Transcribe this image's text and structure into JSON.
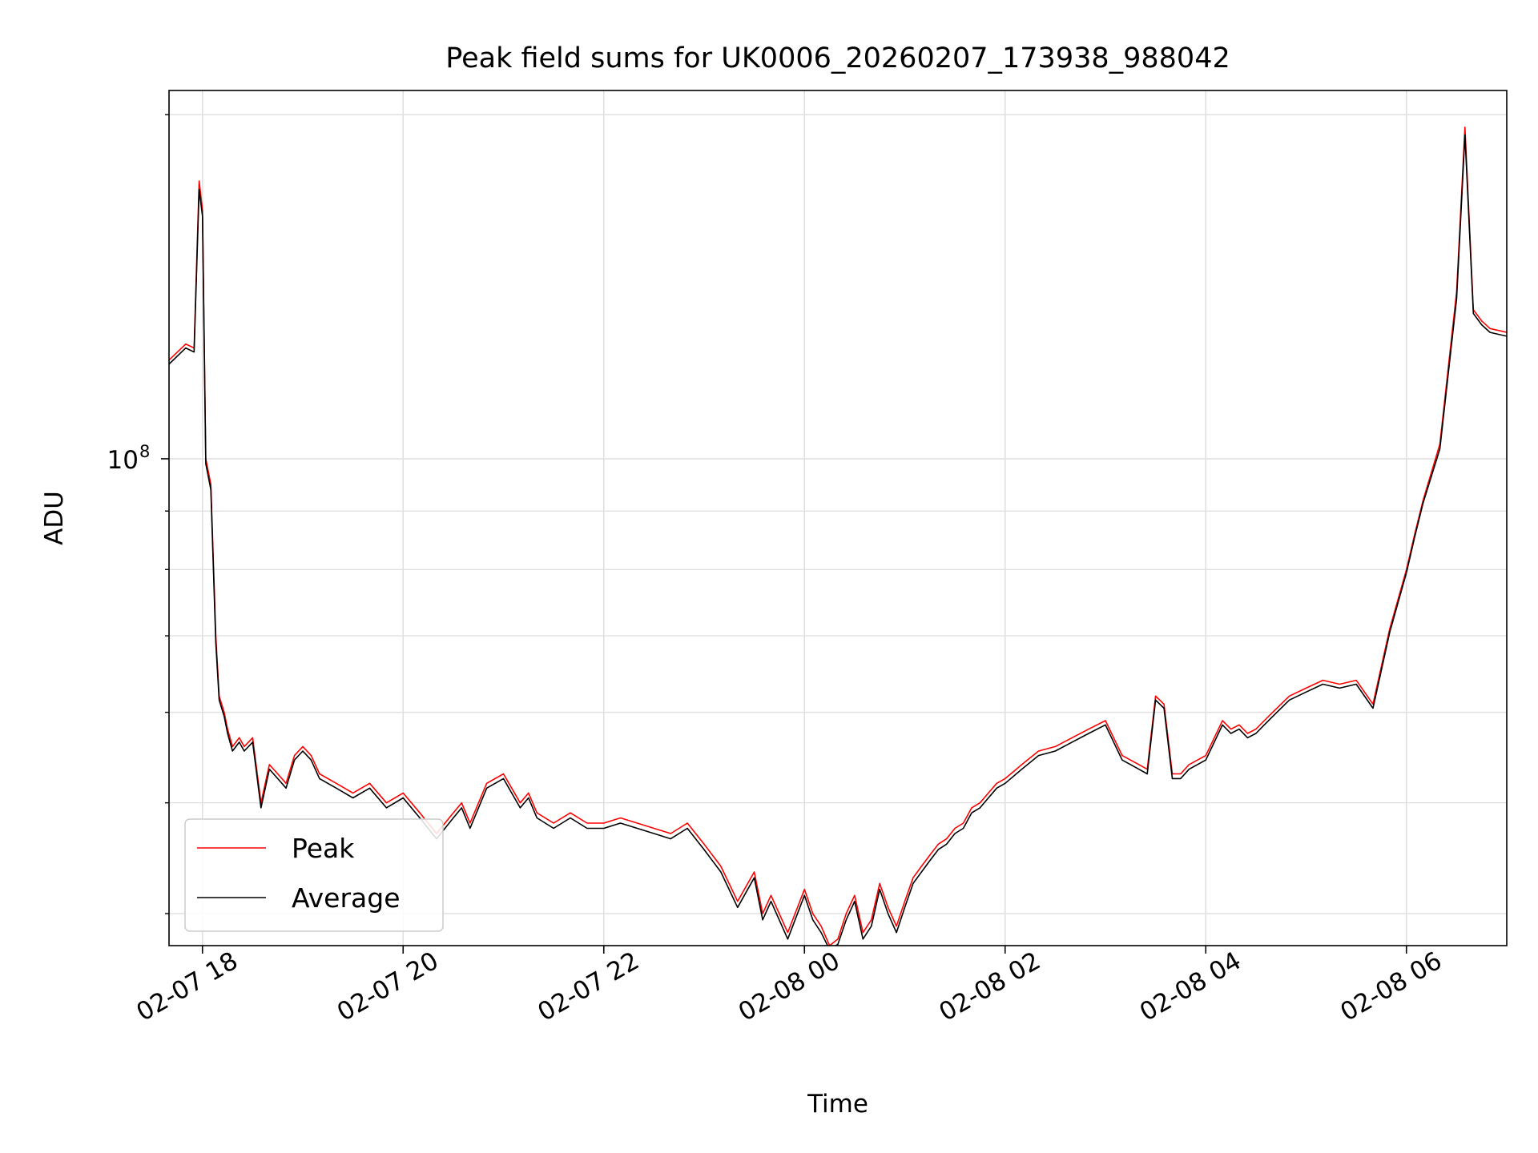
{
  "chart_data": {
    "type": "line",
    "title": "Peak field sums for UK0006_20260207_173938_988042",
    "xlabel": "Time",
    "ylabel": "ADU",
    "y_scale": "log",
    "y_major_tick_label": "10",
    "y_major_tick_exponent": "8",
    "y_major_tick_value": 100000000,
    "y_minor_ticks": [
      40000000,
      50000000,
      60000000,
      70000000,
      80000000,
      90000000,
      200000000
    ],
    "ylim": [
      37500000,
      210000000
    ],
    "xlim": [
      "02-07 17:40",
      "02-08 07:00"
    ],
    "x_tick_labels": [
      "02-07 18",
      "02-07 20",
      "02-07 22",
      "02-08 00",
      "02-08 02",
      "02-08 04",
      "02-08 06"
    ],
    "x_tick_times": [
      "02-07 18:00",
      "02-07 20:00",
      "02-07 22:00",
      "02-08 00:00",
      "02-08 02:00",
      "02-08 04:00",
      "02-08 06:00"
    ],
    "grid": true,
    "legend_position": "lower-left",
    "colors": {
      "peak": "#ff0000",
      "average": "#000000",
      "grid": "#e0e0e0"
    },
    "series": [
      {
        "name": "Peak",
        "color": "#ff0000",
        "x": [
          "02-07 17:40",
          "02-07 17:50",
          "02-07 17:55",
          "02-07 17:58",
          "02-07 18:00",
          "02-07 18:02",
          "02-07 18:05",
          "02-07 18:08",
          "02-07 18:10",
          "02-07 18:13",
          "02-07 18:15",
          "02-07 18:18",
          "02-07 18:22",
          "02-07 18:25",
          "02-07 18:30",
          "02-07 18:35",
          "02-07 18:40",
          "02-07 18:45",
          "02-07 18:50",
          "02-07 18:55",
          "02-07 19:00",
          "02-07 19:05",
          "02-07 19:10",
          "02-07 19:20",
          "02-07 19:30",
          "02-07 19:40",
          "02-07 19:50",
          "02-07 20:00",
          "02-07 20:10",
          "02-07 20:20",
          "02-07 20:30",
          "02-07 20:35",
          "02-07 20:40",
          "02-07 20:50",
          "02-07 21:00",
          "02-07 21:10",
          "02-07 21:15",
          "02-07 21:20",
          "02-07 21:30",
          "02-07 21:40",
          "02-07 21:50",
          "02-07 22:00",
          "02-07 22:10",
          "02-07 22:20",
          "02-07 22:30",
          "02-07 22:40",
          "02-07 22:50",
          "02-07 23:00",
          "02-07 23:10",
          "02-07 23:20",
          "02-07 23:30",
          "02-07 23:35",
          "02-07 23:40",
          "02-07 23:50",
          "02-08 00:00",
          "02-08 00:05",
          "02-08 00:10",
          "02-08 00:15",
          "02-08 00:20",
          "02-08 00:25",
          "02-08 00:30",
          "02-08 00:35",
          "02-08 00:40",
          "02-08 00:45",
          "02-08 00:50",
          "02-08 00:55",
          "02-08 01:00",
          "02-08 01:05",
          "02-08 01:10",
          "02-08 01:15",
          "02-08 01:20",
          "02-08 01:25",
          "02-08 01:30",
          "02-08 01:35",
          "02-08 01:40",
          "02-08 01:45",
          "02-08 01:50",
          "02-08 01:55",
          "02-08 02:00",
          "02-08 02:10",
          "02-08 02:20",
          "02-08 02:30",
          "02-08 02:40",
          "02-08 02:50",
          "02-08 03:00",
          "02-08 03:10",
          "02-08 03:20",
          "02-08 03:25",
          "02-08 03:30",
          "02-08 03:35",
          "02-08 03:40",
          "02-08 03:45",
          "02-08 03:50",
          "02-08 04:00",
          "02-08 04:10",
          "02-08 04:15",
          "02-08 04:20",
          "02-08 04:25",
          "02-08 04:30",
          "02-08 04:35",
          "02-08 04:40",
          "02-08 04:50",
          "02-08 05:00",
          "02-08 05:10",
          "02-08 05:20",
          "02-08 05:30",
          "02-08 05:40",
          "02-08 05:50",
          "02-08 06:00",
          "02-08 06:05",
          "02-08 06:10",
          "02-08 06:20",
          "02-08 06:30",
          "02-08 06:35",
          "02-08 06:40",
          "02-08 06:45",
          "02-08 06:50",
          "02-08 07:00"
        ],
        "values": [
          122000000,
          126000000,
          125000000,
          175000000,
          165000000,
          100000000,
          95000000,
          70000000,
          62000000,
          60000000,
          58000000,
          56000000,
          57000000,
          56000000,
          57000000,
          50000000,
          54000000,
          53000000,
          52000000,
          55000000,
          56000000,
          55000000,
          53000000,
          52000000,
          51000000,
          52000000,
          50000000,
          51000000,
          49000000,
          47000000,
          49000000,
          50000000,
          48000000,
          52000000,
          53000000,
          50000000,
          51000000,
          49000000,
          48000000,
          49000000,
          48000000,
          48000000,
          48500000,
          48000000,
          47500000,
          47000000,
          48000000,
          46000000,
          44000000,
          41000000,
          43500000,
          40000000,
          41500000,
          38500000,
          42000000,
          40000000,
          39000000,
          37500000,
          38000000,
          40000000,
          41500000,
          38500000,
          39500000,
          42500000,
          40500000,
          39000000,
          41000000,
          43000000,
          44000000,
          45000000,
          46000000,
          46500000,
          47500000,
          48000000,
          49500000,
          50000000,
          51000000,
          52000000,
          52500000,
          54000000,
          55500000,
          56000000,
          57000000,
          58000000,
          59000000,
          55000000,
          54000000,
          53500000,
          62000000,
          61000000,
          53000000,
          53000000,
          54000000,
          55000000,
          59000000,
          58000000,
          58500000,
          57500000,
          58000000,
          59000000,
          60000000,
          62000000,
          63000000,
          64000000,
          63500000,
          64000000,
          61000000,
          71000000,
          80000000,
          86000000,
          92000000,
          103000000,
          140000000,
          195000000,
          135000000,
          132000000,
          130000000,
          129000000
        ]
      },
      {
        "name": "Average",
        "color": "#000000",
        "x": [
          "02-07 17:40",
          "02-07 17:50",
          "02-07 17:55",
          "02-07 17:58",
          "02-07 18:00",
          "02-07 18:02",
          "02-07 18:05",
          "02-07 18:08",
          "02-07 18:10",
          "02-07 18:13",
          "02-07 18:15",
          "02-07 18:18",
          "02-07 18:22",
          "02-07 18:25",
          "02-07 18:30",
          "02-07 18:35",
          "02-07 18:40",
          "02-07 18:45",
          "02-07 18:50",
          "02-07 18:55",
          "02-07 19:00",
          "02-07 19:05",
          "02-07 19:10",
          "02-07 19:20",
          "02-07 19:30",
          "02-07 19:40",
          "02-07 19:50",
          "02-07 20:00",
          "02-07 20:10",
          "02-07 20:20",
          "02-07 20:30",
          "02-07 20:35",
          "02-07 20:40",
          "02-07 20:50",
          "02-07 21:00",
          "02-07 21:10",
          "02-07 21:15",
          "02-07 21:20",
          "02-07 21:30",
          "02-07 21:40",
          "02-07 21:50",
          "02-07 22:00",
          "02-07 22:10",
          "02-07 22:20",
          "02-07 22:30",
          "02-07 22:40",
          "02-07 22:50",
          "02-07 23:00",
          "02-07 23:10",
          "02-07 23:20",
          "02-07 23:30",
          "02-07 23:35",
          "02-07 23:40",
          "02-07 23:50",
          "02-08 00:00",
          "02-08 00:05",
          "02-08 00:10",
          "02-08 00:15",
          "02-08 00:20",
          "02-08 00:25",
          "02-08 00:30",
          "02-08 00:35",
          "02-08 00:40",
          "02-08 00:45",
          "02-08 00:50",
          "02-08 00:55",
          "02-08 01:00",
          "02-08 01:05",
          "02-08 01:10",
          "02-08 01:15",
          "02-08 01:20",
          "02-08 01:25",
          "02-08 01:30",
          "02-08 01:35",
          "02-08 01:40",
          "02-08 01:45",
          "02-08 01:50",
          "02-08 01:55",
          "02-08 02:00",
          "02-08 02:10",
          "02-08 02:20",
          "02-08 02:30",
          "02-08 02:40",
          "02-08 02:50",
          "02-08 03:00",
          "02-08 03:10",
          "02-08 03:20",
          "02-08 03:25",
          "02-08 03:30",
          "02-08 03:35",
          "02-08 03:40",
          "02-08 03:45",
          "02-08 03:50",
          "02-08 04:00",
          "02-08 04:10",
          "02-08 04:15",
          "02-08 04:20",
          "02-08 04:25",
          "02-08 04:30",
          "02-08 04:35",
          "02-08 04:40",
          "02-08 04:50",
          "02-08 05:00",
          "02-08 05:10",
          "02-08 05:20",
          "02-08 05:30",
          "02-08 05:40",
          "02-08 05:50",
          "02-08 06:00",
          "02-08 06:05",
          "02-08 06:10",
          "02-08 06:20",
          "02-08 06:30",
          "02-08 06:35",
          "02-08 06:40",
          "02-08 06:45",
          "02-08 06:50",
          "02-08 07:00"
        ],
        "values": [
          121000000,
          125000000,
          124000000,
          172000000,
          163000000,
          99000000,
          94000000,
          69000000,
          61500000,
          59500000,
          57500000,
          55500000,
          56500000,
          55500000,
          56500000,
          49500000,
          53500000,
          52500000,
          51500000,
          54500000,
          55500000,
          54500000,
          52500000,
          51500000,
          50500000,
          51500000,
          49500000,
          50500000,
          48500000,
          46500000,
          48500000,
          49500000,
          47500000,
          51500000,
          52500000,
          49500000,
          50500000,
          48500000,
          47500000,
          48500000,
          47500000,
          47500000,
          48000000,
          47500000,
          47000000,
          46500000,
          47500000,
          45500000,
          43500000,
          40500000,
          43000000,
          39500000,
          41000000,
          38000000,
          41500000,
          39500000,
          38500000,
          37200000,
          37600000,
          39500000,
          41000000,
          38000000,
          39000000,
          42000000,
          40000000,
          38500000,
          40500000,
          42500000,
          43500000,
          44500000,
          45500000,
          46000000,
          47000000,
          47500000,
          49000000,
          49500000,
          50500000,
          51500000,
          52000000,
          53500000,
          55000000,
          55500000,
          56500000,
          57500000,
          58500000,
          54500000,
          53500000,
          53000000,
          61500000,
          60500000,
          52500000,
          52500000,
          53500000,
          54500000,
          58500000,
          57500000,
          58000000,
          57000000,
          57500000,
          58500000,
          59500000,
          61500000,
          62500000,
          63500000,
          63000000,
          63500000,
          60500000,
          70500000,
          79500000,
          85500000,
          91500000,
          102000000,
          138000000,
          192000000,
          134000000,
          131000000,
          129000000,
          128000000
        ]
      }
    ]
  }
}
